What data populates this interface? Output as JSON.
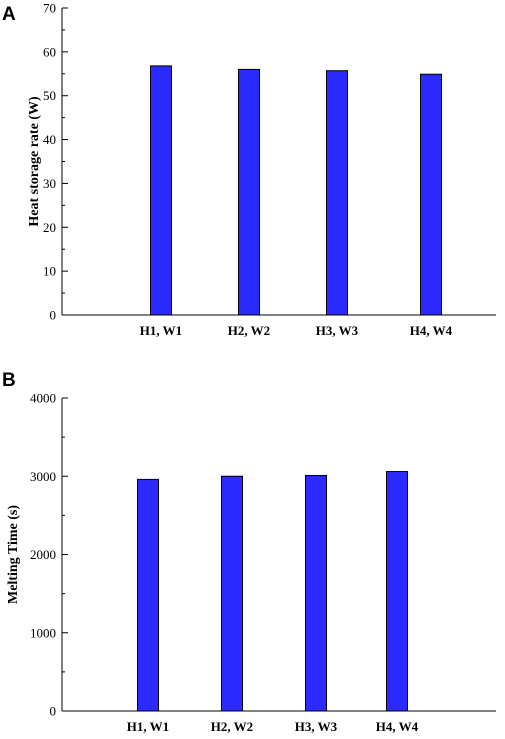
{
  "chart_data": [
    {
      "panel_label": "A",
      "type": "bar",
      "categories": [
        "H1, W1",
        "H2, W2",
        "H3, W3",
        "H4, W4"
      ],
      "values": [
        56.8,
        56.0,
        55.7,
        54.9
      ],
      "xlabel": "",
      "ylabel": "Heat storage rate (W)",
      "ylim": [
        0,
        70
      ],
      "yticks": [
        0,
        10,
        20,
        30,
        40,
        50,
        60,
        70
      ],
      "bar_color": "#2b2bff",
      "grid": false,
      "legend": "none"
    },
    {
      "panel_label": "B",
      "type": "bar",
      "categories": [
        "H1, W1",
        "H2, W2",
        "H3, W3",
        "H4, W4"
      ],
      "values": [
        2960,
        3000,
        3010,
        3060
      ],
      "xlabel": "",
      "ylabel": "Melting Time (s)",
      "ylim": [
        0,
        4000
      ],
      "yticks": [
        0,
        1000,
        2000,
        3000,
        4000
      ],
      "bar_color": "#2b2bff",
      "grid": false,
      "legend": "none"
    }
  ]
}
